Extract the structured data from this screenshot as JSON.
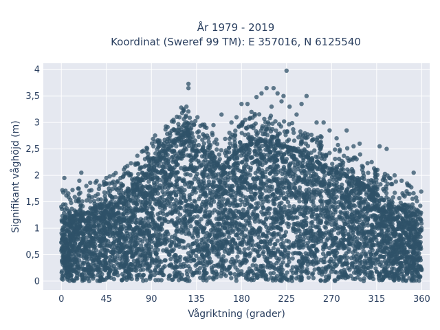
{
  "chart_data": {
    "type": "scatter",
    "title_line1": "År 1979 - 2019",
    "title_line2": "Koordinat (Sweref 99 TM): E 357016, N 6125540",
    "xlabel": "Vågriktning (grader)",
    "ylabel": "Signifikant våghöjd (m)",
    "xlim": [
      -18,
      368
    ],
    "ylim": [
      -0.17,
      4.12
    ],
    "xticks": [
      0,
      45,
      90,
      135,
      180,
      225,
      270,
      315,
      360
    ],
    "xtick_labels": [
      "0",
      "45",
      "90",
      "135",
      "180",
      "225",
      "270",
      "315",
      "360"
    ],
    "yticks": [
      0,
      0.5,
      1,
      1.5,
      2,
      2.5,
      3,
      3.5,
      4
    ],
    "ytick_labels": [
      "0",
      "0,5",
      "1",
      "1,5",
      "2",
      "2,5",
      "3",
      "3,5",
      "4"
    ],
    "grid": true,
    "marker_color": "#2f5168",
    "plot_background": "#e5e8f0",
    "envelope": {
      "x": [
        0,
        10,
        20,
        30,
        45,
        60,
        75,
        90,
        100,
        110,
        120,
        130,
        140,
        150,
        160,
        170,
        180,
        190,
        200,
        210,
        220,
        230,
        240,
        250,
        260,
        270,
        280,
        290,
        300,
        310,
        320,
        330,
        340,
        350,
        360
      ],
      "y": [
        1.15,
        1.2,
        1.3,
        1.35,
        1.4,
        1.6,
        1.8,
        2.15,
        2.4,
        2.55,
        2.75,
        2.75,
        2.5,
        2.3,
        2.1,
        2.35,
        2.5,
        2.6,
        2.65,
        2.6,
        2.55,
        2.5,
        2.4,
        2.3,
        2.2,
        2.1,
        2.0,
        1.95,
        1.85,
        1.7,
        1.55,
        1.45,
        1.35,
        1.3,
        1.15
      ]
    },
    "outliers": [
      {
        "x": 1,
        "y": 1.72
      },
      {
        "x": 3,
        "y": 1.95
      },
      {
        "x": 2,
        "y": 1.45
      },
      {
        "x": 5,
        "y": 1.62
      },
      {
        "x": 18,
        "y": 1.9
      },
      {
        "x": 20,
        "y": 2.05
      },
      {
        "x": 25,
        "y": 1.8
      },
      {
        "x": 30,
        "y": 1.72
      },
      {
        "x": 45,
        "y": 1.95
      },
      {
        "x": 52,
        "y": 1.88
      },
      {
        "x": 60,
        "y": 1.8
      },
      {
        "x": 68,
        "y": 2.0
      },
      {
        "x": 74,
        "y": 2.2
      },
      {
        "x": 80,
        "y": 2.15
      },
      {
        "x": 85,
        "y": 2.45
      },
      {
        "x": 92,
        "y": 2.55
      },
      {
        "x": 100,
        "y": 2.6
      },
      {
        "x": 108,
        "y": 2.7
      },
      {
        "x": 112,
        "y": 3.05
      },
      {
        "x": 118,
        "y": 3.1
      },
      {
        "x": 122,
        "y": 3.25
      },
      {
        "x": 125,
        "y": 3.3
      },
      {
        "x": 127,
        "y": 3.65
      },
      {
        "x": 127,
        "y": 3.73
      },
      {
        "x": 130,
        "y": 3.0
      },
      {
        "x": 136,
        "y": 3.1
      },
      {
        "x": 145,
        "y": 2.9
      },
      {
        "x": 152,
        "y": 2.95
      },
      {
        "x": 160,
        "y": 3.15
      },
      {
        "x": 170,
        "y": 3.0
      },
      {
        "x": 175,
        "y": 3.1
      },
      {
        "x": 180,
        "y": 3.35
      },
      {
        "x": 186,
        "y": 3.35
      },
      {
        "x": 190,
        "y": 3.2
      },
      {
        "x": 195,
        "y": 3.48
      },
      {
        "x": 200,
        "y": 3.55
      },
      {
        "x": 205,
        "y": 3.65
      },
      {
        "x": 210,
        "y": 3.3
      },
      {
        "x": 212,
        "y": 3.65
      },
      {
        "x": 216,
        "y": 3.55
      },
      {
        "x": 220,
        "y": 3.4
      },
      {
        "x": 222,
        "y": 3.5
      },
      {
        "x": 225,
        "y": 3.98
      },
      {
        "x": 228,
        "y": 3.3
      },
      {
        "x": 235,
        "y": 3.15
      },
      {
        "x": 240,
        "y": 3.35
      },
      {
        "x": 245,
        "y": 3.5
      },
      {
        "x": 255,
        "y": 3.0
      },
      {
        "x": 262,
        "y": 3.0
      },
      {
        "x": 268,
        "y": 2.85
      },
      {
        "x": 275,
        "y": 2.7
      },
      {
        "x": 285,
        "y": 2.85
      },
      {
        "x": 292,
        "y": 2.55
      },
      {
        "x": 298,
        "y": 2.6
      },
      {
        "x": 310,
        "y": 2.25
      },
      {
        "x": 318,
        "y": 2.55
      },
      {
        "x": 325,
        "y": 2.5
      },
      {
        "x": 333,
        "y": 2.0
      },
      {
        "x": 340,
        "y": 1.9
      },
      {
        "x": 345,
        "y": 1.7
      },
      {
        "x": 352,
        "y": 2.05
      },
      {
        "x": 355,
        "y": 1.35
      },
      {
        "x": 358,
        "y": 1.3
      }
    ]
  }
}
